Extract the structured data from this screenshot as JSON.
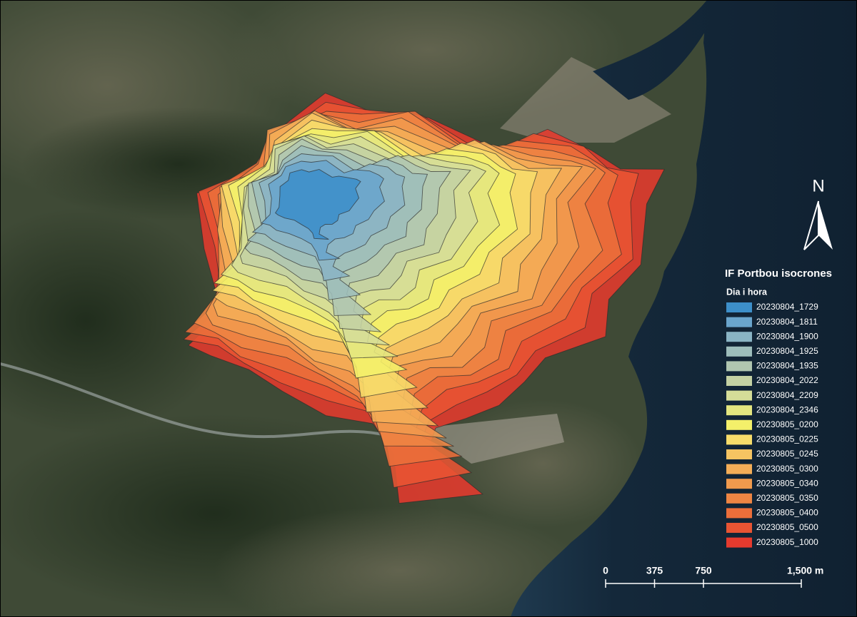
{
  "map": {
    "legend": {
      "title": "IF Portbou isocrones",
      "subtitle": "Dia i hora",
      "items": [
        {
          "label": "20230804_1729",
          "color": "#3d8fc9"
        },
        {
          "label": "20230804_1811",
          "color": "#6aa5cc"
        },
        {
          "label": "20230804_1900",
          "color": "#8ab4c4"
        },
        {
          "label": "20230804_1925",
          "color": "#9dbdbb"
        },
        {
          "label": "20230804_1935",
          "color": "#b0c6b0"
        },
        {
          "label": "20230804_2022",
          "color": "#c4d1a3"
        },
        {
          "label": "20230804_2209",
          "color": "#d5dd98"
        },
        {
          "label": "20230804_2346",
          "color": "#e4e67f"
        },
        {
          "label": "20230805_0200",
          "color": "#f4f06a"
        },
        {
          "label": "20230805_0225",
          "color": "#f7dc6a"
        },
        {
          "label": "20230805_0245",
          "color": "#f6c462"
        },
        {
          "label": "20230805_0300",
          "color": "#f4ad57"
        },
        {
          "label": "20230805_0340",
          "color": "#f19a4d"
        },
        {
          "label": "20230805_0350",
          "color": "#ee8543"
        },
        {
          "label": "20230805_0400",
          "color": "#eb6e3a"
        },
        {
          "label": "20230805_0500",
          "color": "#e85433"
        },
        {
          "label": "20230805_1000",
          "color": "#e53a2e"
        }
      ]
    },
    "north_label": "N",
    "scale_bar": {
      "ticks": [
        0,
        375,
        750,
        {
          "value": 1500,
          "label": "1,500 m"
        }
      ]
    }
  }
}
